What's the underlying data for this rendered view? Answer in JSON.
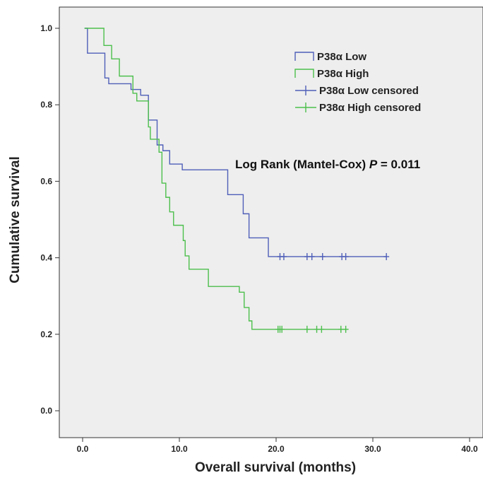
{
  "chart_data": {
    "type": "line",
    "title": "",
    "xlabel": "Overall survival (months)",
    "ylabel": "Cumulative survival",
    "xlim": [
      0,
      40
    ],
    "ylim": [
      0,
      1
    ],
    "x_ticks": [
      "0.0",
      "10.0",
      "20.0",
      "30.0",
      "40.0"
    ],
    "y_ticks": [
      "0.0",
      "0.2",
      "0.4",
      "0.6",
      "0.8",
      "1.0"
    ],
    "grid": false,
    "legend_position": "top-right",
    "legend": [
      {
        "label": "P38α Low",
        "series": "low",
        "kind": "line"
      },
      {
        "label": "P38α High",
        "series": "high",
        "kind": "line"
      },
      {
        "label": "P38α Low censored",
        "series": "low",
        "kind": "censor"
      },
      {
        "label": "P38α High censored",
        "series": "high",
        "kind": "censor"
      }
    ],
    "annotation": {
      "prefix": "Log Rank (Mantel-Cox) ",
      "p_symbol": "P",
      "suffix": " = 0.011"
    },
    "colors": {
      "low": "#4f5fb8",
      "high": "#4cbf4c",
      "plot_bg": "#eeeeee",
      "axis": "#333333"
    },
    "series": [
      {
        "key": "low",
        "steps": [
          [
            0.2,
            1.0
          ],
          [
            0.5,
            0.935
          ],
          [
            2.3,
            0.87
          ],
          [
            2.7,
            0.855
          ],
          [
            5.0,
            0.84
          ],
          [
            6.0,
            0.825
          ],
          [
            6.8,
            0.76
          ],
          [
            7.7,
            0.695
          ],
          [
            8.3,
            0.68
          ],
          [
            9.0,
            0.645
          ],
          [
            10.3,
            0.63
          ],
          [
            15.0,
            0.565
          ],
          [
            16.6,
            0.515
          ],
          [
            17.2,
            0.452
          ],
          [
            19.2,
            0.403
          ],
          [
            31.4,
            0.403
          ]
        ],
        "censored": [
          20.4,
          20.8,
          23.2,
          23.7,
          24.8,
          26.8,
          27.2,
          31.4
        ]
      },
      {
        "key": "high",
        "steps": [
          [
            0.2,
            1.0
          ],
          [
            2.2,
            0.955
          ],
          [
            3.0,
            0.92
          ],
          [
            3.8,
            0.875
          ],
          [
            5.2,
            0.83
          ],
          [
            5.6,
            0.81
          ],
          [
            6.8,
            0.742
          ],
          [
            7.0,
            0.71
          ],
          [
            7.9,
            0.676
          ],
          [
            8.2,
            0.595
          ],
          [
            8.6,
            0.558
          ],
          [
            9.0,
            0.52
          ],
          [
            9.4,
            0.485
          ],
          [
            10.4,
            0.445
          ],
          [
            10.6,
            0.405
          ],
          [
            11.0,
            0.37
          ],
          [
            13.0,
            0.325
          ],
          [
            16.2,
            0.31
          ],
          [
            16.7,
            0.27
          ],
          [
            17.2,
            0.235
          ],
          [
            17.5,
            0.213
          ],
          [
            27.2,
            0.213
          ]
        ],
        "censored": [
          20.2,
          20.4,
          20.6,
          23.2,
          24.2,
          24.7,
          26.7,
          27.2
        ]
      }
    ]
  }
}
